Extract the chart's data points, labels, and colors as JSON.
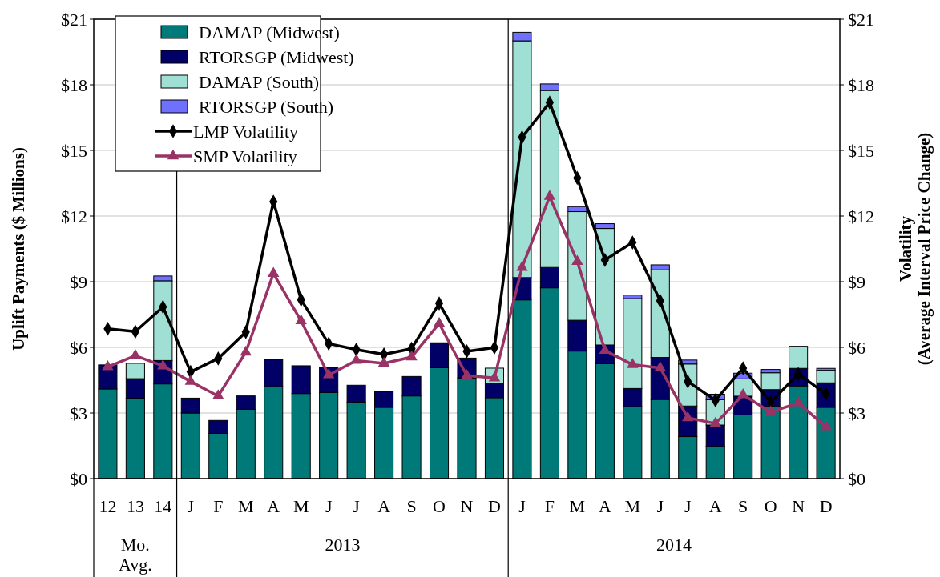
{
  "chart_data": {
    "type": "bar",
    "stacked": true,
    "ylabel": "Uplift Payments ($ Millions)",
    "y2label": "Volatility (Average Interval Price Change)",
    "categories": [
      "12",
      "13",
      "14",
      "J",
      "F",
      "M",
      "A",
      "M",
      "J",
      "J",
      "A",
      "S",
      "O",
      "N",
      "D",
      "J",
      "F",
      "M",
      "A",
      "M",
      "J",
      "J",
      "A",
      "S",
      "O",
      "N",
      "D"
    ],
    "annotations": [
      "Mo. Avg.",
      "2013",
      "2014"
    ],
    "ylim": [
      0,
      21
    ],
    "yticks": [
      {
        "value": 0,
        "label": "$0"
      },
      {
        "value": 3,
        "label": "$3"
      },
      {
        "value": 6,
        "label": "$6"
      },
      {
        "value": 9,
        "label": "$9"
      },
      {
        "value": 12,
        "label": "$12"
      },
      {
        "value": 15,
        "label": "$15"
      },
      {
        "value": 18,
        "label": "$18"
      },
      {
        "value": 21,
        "label": "$21"
      }
    ],
    "y2lim": [
      0,
      21
    ],
    "y2ticks": [
      {
        "value": 0,
        "label": "$0"
      },
      {
        "value": 3,
        "label": "$3"
      },
      {
        "value": 6,
        "label": "$6"
      },
      {
        "value": 9,
        "label": "$9"
      },
      {
        "value": 12,
        "label": "$12"
      },
      {
        "value": 15,
        "label": "$15"
      },
      {
        "value": 18,
        "label": "$18"
      },
      {
        "value": 21,
        "label": "$21"
      }
    ],
    "grid": "y",
    "legend": "top left",
    "series": [
      {
        "name": "DAMAP (Midwest)",
        "color": "#007a78",
        "values": [
          4.1,
          3.67,
          4.33,
          3.0,
          2.07,
          3.17,
          4.21,
          3.89,
          3.94,
          3.5,
          3.26,
          3.78,
          5.07,
          4.6,
          3.7,
          8.17,
          8.72,
          5.83,
          5.25,
          3.29,
          3.62,
          1.92,
          1.47,
          2.91,
          3.3,
          4.24,
          3.26
        ]
      },
      {
        "name": "RTORSGP (Midwest)",
        "color": "#000066",
        "values": [
          1.1,
          0.9,
          1.07,
          0.68,
          0.59,
          0.61,
          1.24,
          1.27,
          1.15,
          0.77,
          0.73,
          0.89,
          1.14,
          0.91,
          0.67,
          1.02,
          0.93,
          1.41,
          0.86,
          0.83,
          1.92,
          1.4,
          0.98,
          0.86,
          0.77,
          0.8,
          1.12
        ]
      },
      {
        "name": "DAMAP (South)",
        "color": "#a0e0d4",
        "values": [
          0,
          0.7,
          3.64,
          0,
          0,
          0,
          0,
          0,
          0,
          0,
          0,
          0,
          0,
          0,
          0.68,
          10.82,
          8.09,
          4.96,
          5.32,
          4.11,
          4.0,
          1.92,
          1.16,
          0.79,
          0.77,
          1.01,
          0.57
        ]
      },
      {
        "name": "RTORSGP (South)",
        "color": "#7070ff",
        "values": [
          0,
          0,
          0.22,
          0,
          0,
          0,
          0,
          0,
          0,
          0,
          0,
          0,
          0,
          0,
          0,
          0.39,
          0.3,
          0.23,
          0.22,
          0.16,
          0.23,
          0.18,
          0.25,
          0.26,
          0.15,
          0,
          0.09
        ]
      },
      {
        "name": "LMP Volatility",
        "type": "line",
        "marker": "diamond",
        "color": "#000000",
        "values": [
          6.85,
          6.72,
          7.85,
          4.88,
          5.49,
          6.7,
          12.66,
          8.18,
          6.17,
          5.9,
          5.68,
          5.94,
          8.01,
          5.82,
          5.99,
          15.6,
          17.19,
          13.74,
          9.99,
          10.79,
          8.13,
          4.44,
          3.58,
          5.05,
          3.49,
          4.78,
          3.88
        ]
      },
      {
        "name": "SMP Volatility",
        "type": "line",
        "marker": "triangle",
        "color": "#993366",
        "values": [
          5.11,
          5.62,
          5.15,
          4.44,
          3.78,
          5.78,
          9.37,
          7.21,
          4.74,
          5.4,
          5.27,
          5.56,
          7.09,
          4.71,
          4.6,
          9.65,
          12.89,
          9.92,
          5.86,
          5.21,
          5.06,
          2.78,
          2.52,
          3.83,
          3.04,
          3.46,
          2.37
        ]
      }
    ]
  }
}
